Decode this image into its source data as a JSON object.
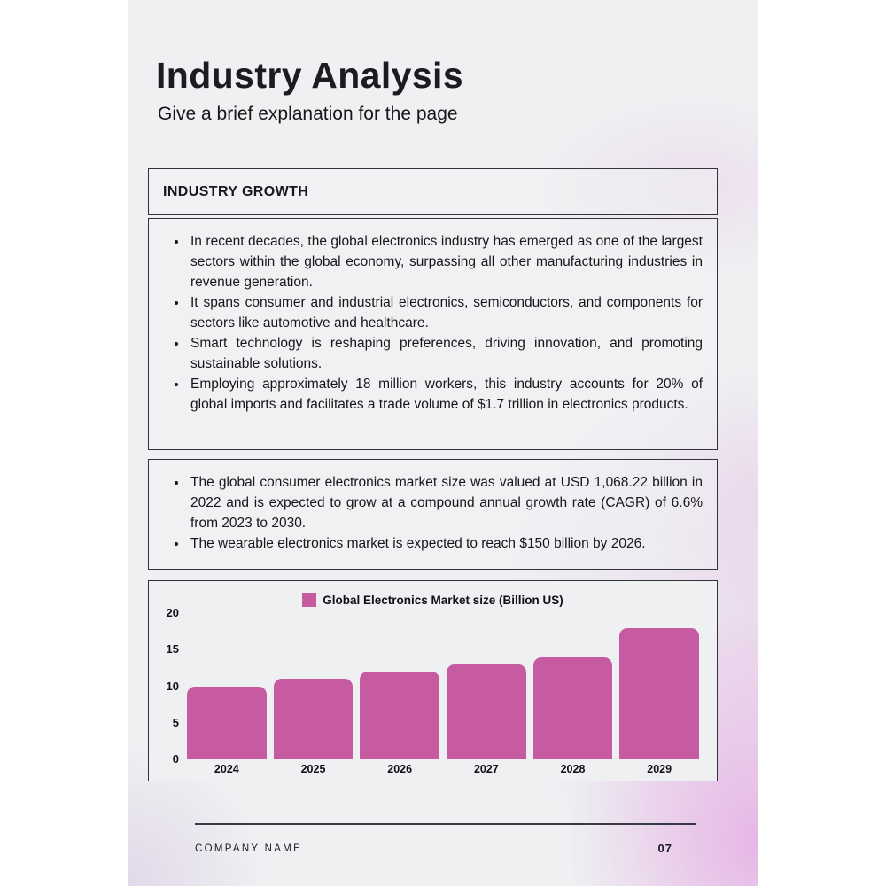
{
  "page": {
    "title": "Industry Analysis",
    "subtitle": "Give a brief explanation for the page"
  },
  "growth_box": {
    "header": "INDUSTRY GROWTH",
    "bullets": [
      "In recent decades, the global electronics industry has emerged as one of the largest sectors within the global economy, surpassing all other manufacturing industries in revenue generation.",
      "It spans consumer and industrial electronics, semiconductors, and components for sectors like automotive and healthcare.",
      "Smart technology is reshaping preferences, driving innovation, and promoting sustainable solutions.",
      "Employing approximately 18 million workers, this industry accounts for 20% of global imports and facilitates a trade volume of $1.7 trillion in electronics products."
    ]
  },
  "market_box": {
    "bullets": [
      "The global consumer electronics market size was valued at USD 1,068.22 billion in 2022 and is expected to grow at a compound annual growth rate (CAGR) of 6.6% from 2023 to 2030.",
      "The wearable electronics market is expected to reach $150 billion by 2026."
    ]
  },
  "chart_data": {
    "type": "bar",
    "title": "",
    "legend": "Global Electronics Market size (Billion US)",
    "legend_position": "top",
    "categories": [
      "2024",
      "2025",
      "2026",
      "2027",
      "2028",
      "2029"
    ],
    "values": [
      10,
      11,
      12,
      13,
      14,
      18
    ],
    "xlabel": "",
    "ylabel": "",
    "ylim": [
      0,
      20
    ],
    "yticks": [
      0,
      5,
      10,
      15,
      20
    ],
    "grid": false,
    "bar_color": "#c75ba1"
  },
  "footer": {
    "company": "COMPANY NAME",
    "page_number": "07"
  },
  "colors": {
    "accent_pink": "#c75ba1",
    "page_base": "#eef0f2",
    "gradient_pink": "#e6b4e5",
    "text": "#17171a",
    "border": "#33333c"
  }
}
